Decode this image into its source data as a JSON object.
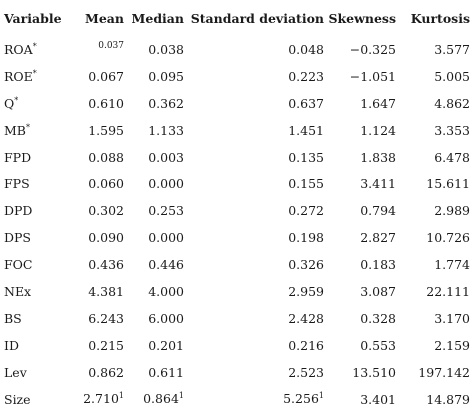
{
  "table": {
    "headers": [
      "Variable",
      "Mean",
      "Median",
      "Standard deviation",
      "Skewness",
      "Kurtosis"
    ],
    "rows": [
      {
        "variable": "ROA",
        "star": "*",
        "mean": "0.037",
        "median": "0.038",
        "sd": "0.048",
        "skew": "−0.325",
        "kurt": "3.577"
      },
      {
        "variable": "ROE",
        "star": "*",
        "mean": "0.067",
        "median": "0.095",
        "sd": "0.223",
        "skew": "−1.051",
        "kurt": "5.005"
      },
      {
        "variable": "Q",
        "star": "*",
        "mean": "0.610",
        "median": "0.362",
        "sd": "0.637",
        "skew": "1.647",
        "kurt": "4.862"
      },
      {
        "variable": "MB",
        "star": "*",
        "mean": "1.595",
        "median": "1.133",
        "sd": "1.451",
        "skew": "1.124",
        "kurt": "3.353"
      },
      {
        "variable": "FPD",
        "mean": "0.088",
        "median": "0.003",
        "sd": "0.135",
        "skew": "1.838",
        "kurt": "6.478"
      },
      {
        "variable": "FPS",
        "mean": "0.060",
        "median": "0.000",
        "sd": "0.155",
        "skew": "3.411",
        "kurt": "15.611"
      },
      {
        "variable": "DPD",
        "mean": "0.302",
        "median": "0.253",
        "sd": "0.272",
        "skew": "0.794",
        "kurt": "2.989"
      },
      {
        "variable": "DPS",
        "mean": "0.090",
        "median": "0.000",
        "sd": "0.198",
        "skew": "2.827",
        "kurt": "10.726"
      },
      {
        "variable": "FOC",
        "mean": "0.436",
        "median": "0.446",
        "sd": "0.326",
        "skew": "0.183",
        "kurt": "1.774"
      },
      {
        "variable": "NEx",
        "mean": "4.381",
        "median": "4.000",
        "sd": "2.959",
        "skew": "3.087",
        "kurt": "22.111"
      },
      {
        "variable": "BS",
        "mean": "6.243",
        "median": "6.000",
        "sd": "2.428",
        "skew": "0.328",
        "kurt": "3.170"
      },
      {
        "variable": "ID",
        "mean": "0.215",
        "median": "0.201",
        "sd": "0.216",
        "skew": "0.553",
        "kurt": "2.159"
      },
      {
        "variable": "Lev",
        "mean": "0.862",
        "median": "0.611",
        "sd": "2.523",
        "skew": "13.510",
        "kurt": "197.142"
      },
      {
        "variable": "Size",
        "mean": "2.710",
        "mean_fn": "1",
        "median": "0.864",
        "median_fn": "1",
        "sd": "5.256",
        "sd_fn": "1",
        "skew": "3.401",
        "kurt": "14.879"
      }
    ]
  }
}
